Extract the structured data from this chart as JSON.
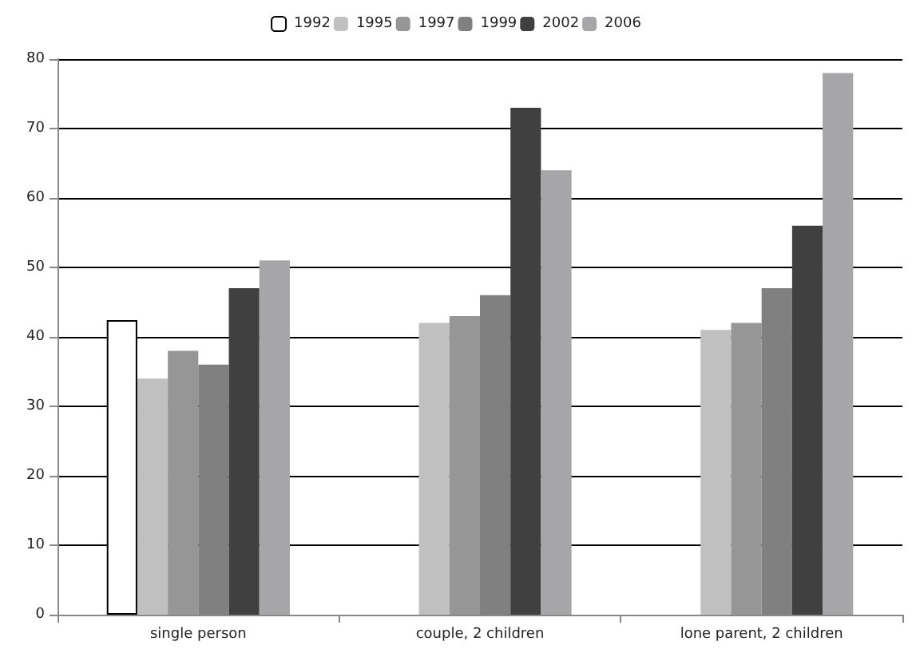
{
  "chart_data": {
    "type": "bar",
    "categories": [
      "single person",
      "couple, 2 children",
      "lone parent, 2 children"
    ],
    "series": [
      {
        "name": "1992",
        "color": "#ffffff",
        "values": [
          42.4,
          null,
          null
        ]
      },
      {
        "name": "1995",
        "color": "#c0c0c0",
        "values": [
          34,
          42,
          41
        ]
      },
      {
        "name": "1997",
        "color": "#969696",
        "values": [
          38,
          43,
          42
        ]
      },
      {
        "name": "1999",
        "color": "#808080",
        "values": [
          36,
          46,
          47
        ]
      },
      {
        "name": "2002",
        "color": "#404040",
        "values": [
          47,
          73,
          56
        ]
      },
      {
        "name": "2006",
        "color": "#a6a6a8",
        "values": [
          51,
          64,
          78
        ]
      }
    ],
    "ylim": [
      0,
      80
    ],
    "yticks": [
      0,
      10,
      20,
      30,
      40,
      50,
      60,
      70,
      80
    ],
    "grid": "y",
    "legend": "top"
  }
}
